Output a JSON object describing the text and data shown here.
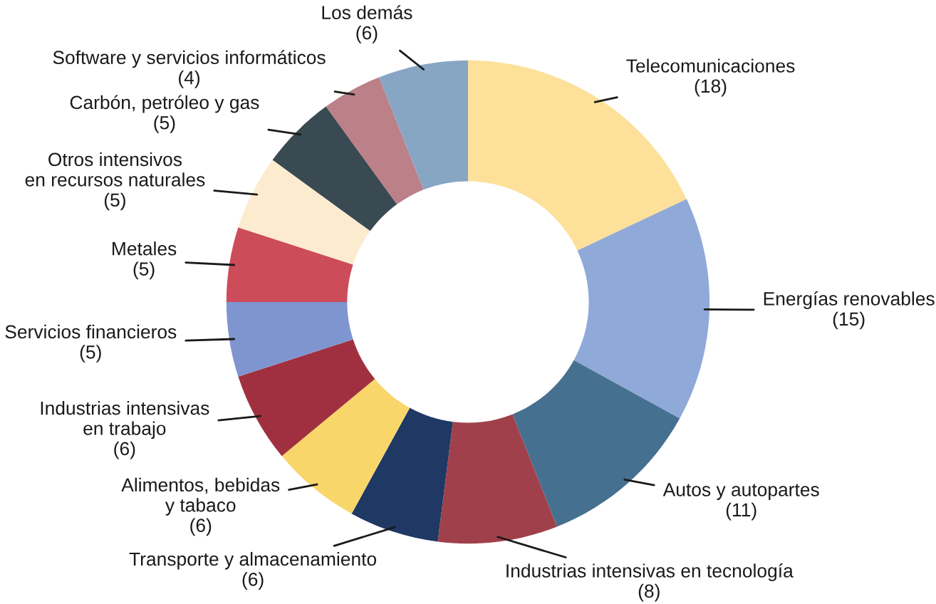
{
  "chart_data": {
    "type": "donut",
    "categories": [
      "Telecomunicaciones",
      "Energías renovables",
      "Autos y autopartes",
      "Industrias intensivas en tecnología",
      "Transporte y almacenamiento",
      "Alimentos, bebidas\ny tabaco",
      "Industrias intensivas\nen trabajo",
      "Servicios financieros",
      "Metales",
      "Otros intensivos\nen recursos naturales",
      "Carbón, petróleo y gas",
      "Software y servicios informáticos",
      "Los demás"
    ],
    "values": [
      18,
      15,
      11,
      8,
      6,
      6,
      6,
      5,
      5,
      5,
      5,
      4,
      6
    ],
    "value_labels": [
      "(18)",
      "(15)",
      "(11)",
      "(8)",
      "(6)",
      "(6)",
      "(6)",
      "(5)",
      "(5)",
      "(5)",
      "(5)",
      "(4)",
      "(6)"
    ],
    "colors": [
      "#fde09a",
      "#8fa9d9",
      "#46708f",
      "#a0404a",
      "#1f3864",
      "#f8d66a",
      "#a03040",
      "#7f95cf",
      "#cc4c5a",
      "#fdebd0",
      "#3a4a52",
      "#bb8088",
      "#87a6c4"
    ]
  }
}
